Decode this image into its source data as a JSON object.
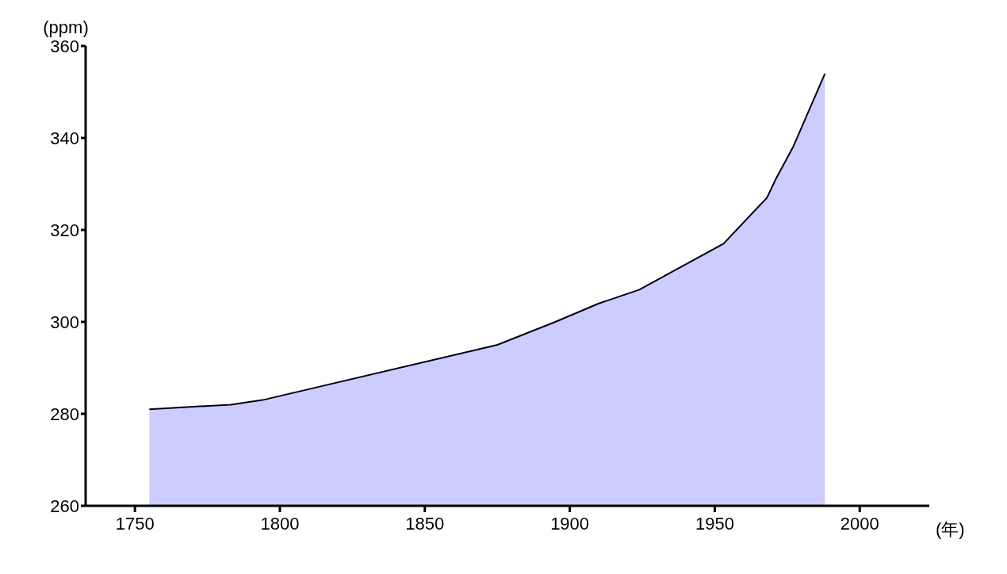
{
  "chart_data": {
    "type": "area",
    "xlabel": "(年)",
    "ylabel": "(ppm)",
    "x": [
      1755,
      1783,
      1794,
      1875,
      1895,
      1910,
      1924,
      1953,
      1968,
      1971,
      1977,
      1988
    ],
    "values": [
      281,
      282,
      283,
      295,
      300,
      304,
      307,
      317,
      327,
      331,
      338,
      354
    ],
    "color": "#ccccff",
    "xlim": [
      1733,
      2024
    ],
    "xticks": [
      1750,
      1800,
      1850,
      1900,
      1950,
      2000
    ],
    "ylim": [
      260,
      360
    ],
    "yticks": [
      260,
      280,
      300,
      320,
      340,
      360
    ]
  }
}
